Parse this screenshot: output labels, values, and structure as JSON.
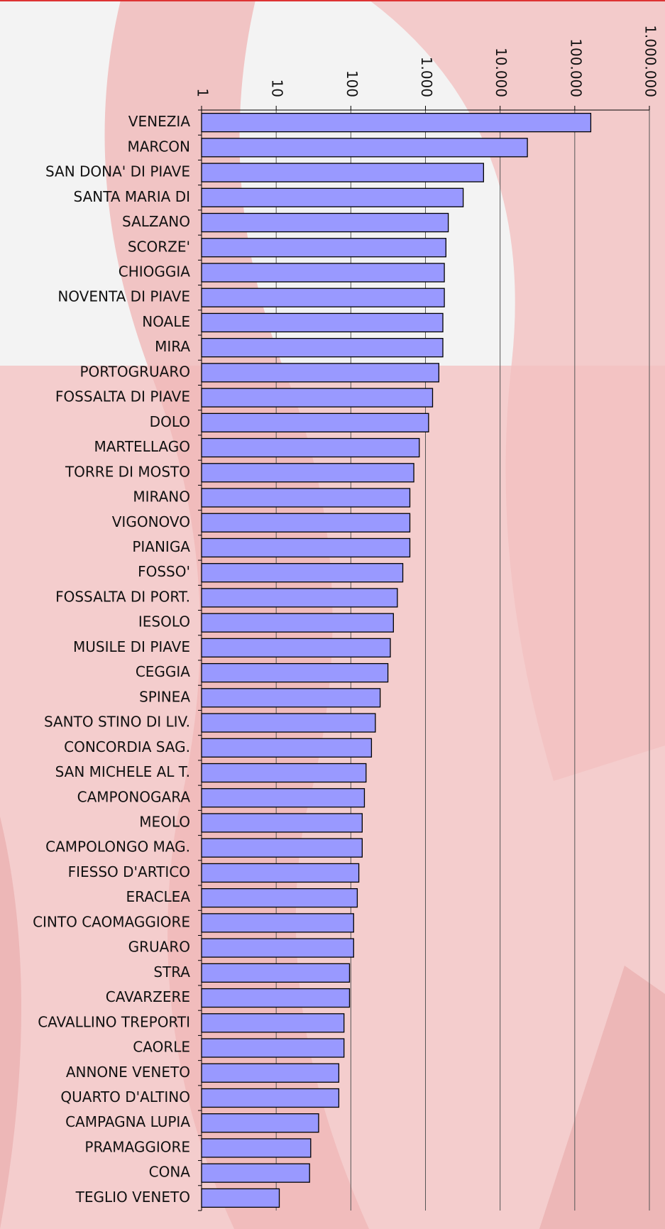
{
  "chart_data": {
    "type": "bar",
    "orientation": "horizontal",
    "xscale": "log",
    "color": "#9999ff",
    "grid": true,
    "categories": [
      "VENEZIA",
      "MARCON",
      "SAN DONA' DI PIAVE",
      "SANTA MARIA DI",
      "SALZANO",
      "SCORZE'",
      "CHIOGGIA",
      "NOVENTA DI PIAVE",
      "NOALE",
      "MIRA",
      "PORTOGRUARO",
      "FOSSALTA DI PIAVE",
      "DOLO",
      "MARTELLAGO",
      "TORRE DI MOSTO",
      "MIRANO",
      "VIGONOVO",
      "PIANIGA",
      "FOSSO'",
      "FOSSALTA DI PORT.",
      "IESOLO",
      "MUSILE DI PIAVE",
      "CEGGIA",
      "SPINEA",
      "SANTO STINO DI LIV.",
      "CONCORDIA SAG.",
      "SAN MICHELE AL T.",
      "CAMPONOGARA",
      "MEOLO",
      "CAMPOLONGO MAG.",
      "FIESSO D'ARTICO",
      "ERACLEA",
      "CINTO CAOMAGGIORE",
      "GRUARO",
      "STRA",
      "CAVARZERE",
      "CAVALLINO TREPORTI",
      "CAORLE",
      "ANNONE VENETO",
      "QUARTO D'ALTINO",
      "CAMPAGNA LUPIA",
      "PRAMAGGIORE",
      "CONA",
      "TEGLIO VENETO"
    ],
    "values": [
      164000,
      23200,
      6000,
      3200,
      2020,
      1880,
      1790,
      1790,
      1710,
      1710,
      1510,
      1245,
      1100,
      826,
      698,
      618,
      618,
      618,
      497,
      420,
      372,
      338,
      314,
      247,
      213,
      189,
      160,
      152,
      142,
      142,
      128,
      122,
      109,
      109,
      96,
      96,
      81,
      81,
      69,
      69,
      37,
      29,
      28,
      11
    ],
    "xlim": [
      1,
      1000000
    ],
    "xticks": [
      1,
      10,
      100,
      {
        "value": 1000,
        "label": "1.000"
      },
      {
        "value": 10000,
        "label": "10.000"
      },
      {
        "value": 100000,
        "label": "100.000"
      },
      {
        "value": 1000000,
        "label": "1.000.000"
      }
    ]
  }
}
